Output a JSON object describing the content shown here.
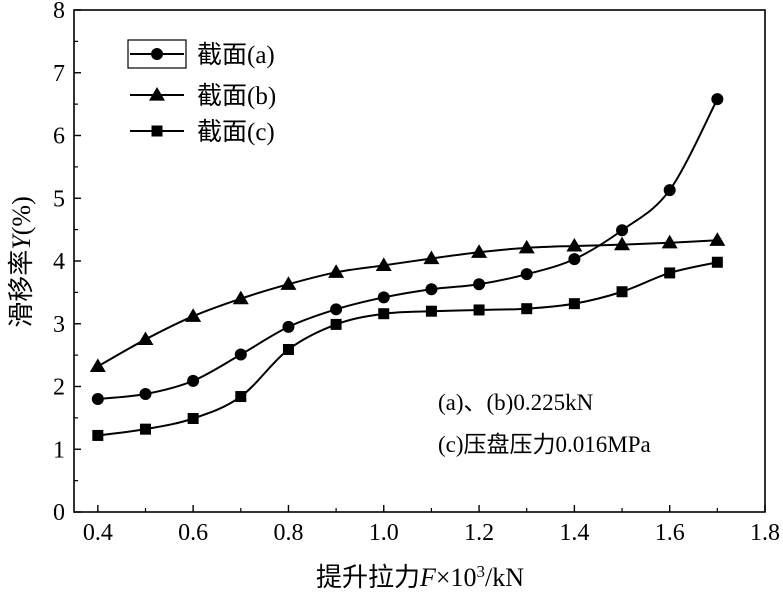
{
  "chart_data": {
    "type": "line",
    "title": "",
    "xlabel_parts": [
      "提升拉力",
      "F",
      "×10",
      "3",
      "/kN"
    ],
    "ylabel_parts": [
      "滑移率",
      "Y",
      "(%)"
    ],
    "xlim": [
      0.35,
      1.8
    ],
    "ylim": [
      0,
      8
    ],
    "xticks": [
      0.4,
      0.6,
      0.8,
      1.0,
      1.2,
      1.4,
      1.6,
      1.8
    ],
    "xtick_labels": [
      "0.4",
      "0.6",
      "0.8",
      "1.0",
      "1.2",
      "1.4",
      "1.6",
      "1.8"
    ],
    "yticks": [
      0,
      1,
      2,
      3,
      4,
      5,
      6,
      7,
      8
    ],
    "ytick_labels": [
      "0",
      "1",
      "2",
      "3",
      "4",
      "5",
      "6",
      "7",
      "8"
    ],
    "grid": false,
    "legend_position": "top-left",
    "x": [
      0.4,
      0.5,
      0.6,
      0.7,
      0.8,
      0.9,
      1.0,
      1.1,
      1.2,
      1.3,
      1.4,
      1.5,
      1.6,
      1.7
    ],
    "series": [
      {
        "name": "截面(a)",
        "marker": "circle",
        "values": [
          1.8,
          1.88,
          2.09,
          2.51,
          2.95,
          3.23,
          3.42,
          3.55,
          3.63,
          3.79,
          4.03,
          4.49,
          5.13,
          6.58
        ]
      },
      {
        "name": "截面(b)",
        "marker": "triangle",
        "values": [
          2.32,
          2.75,
          3.12,
          3.4,
          3.63,
          3.82,
          3.93,
          4.04,
          4.14,
          4.21,
          4.24,
          4.26,
          4.29,
          4.33
        ]
      },
      {
        "name": "截面(c)",
        "marker": "square",
        "values": [
          1.22,
          1.32,
          1.49,
          1.84,
          2.59,
          2.99,
          3.16,
          3.2,
          3.22,
          3.24,
          3.32,
          3.51,
          3.81,
          3.98
        ]
      }
    ],
    "annotations": [
      "(a)、(b)0.225kN",
      "(c)压盘压力0.016MPa"
    ]
  }
}
